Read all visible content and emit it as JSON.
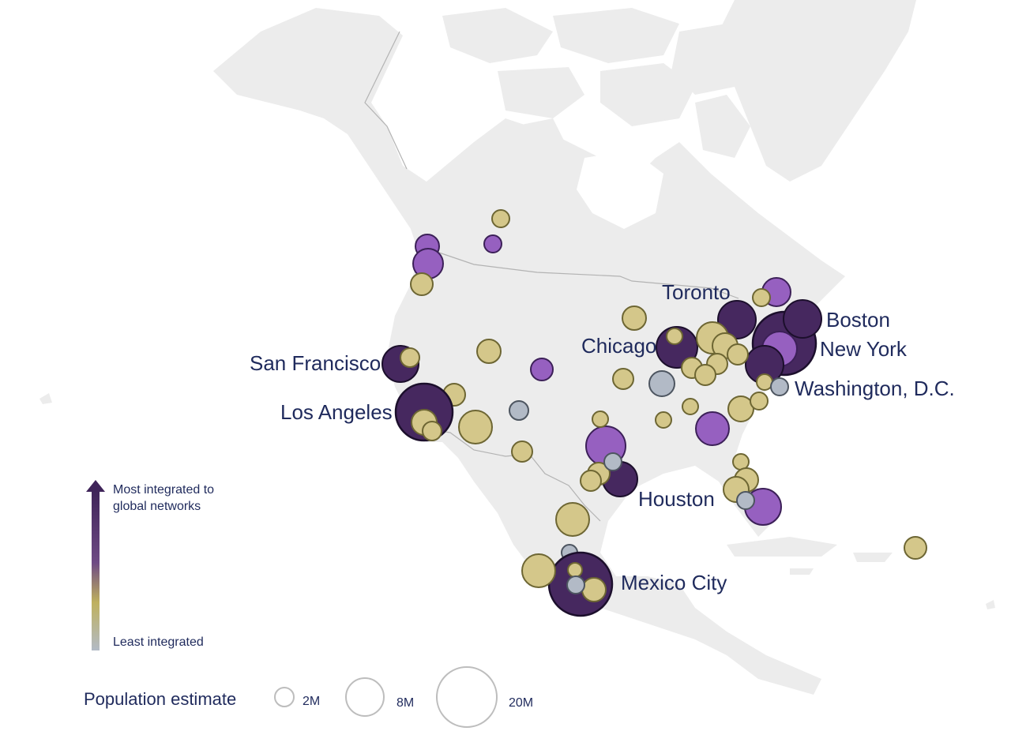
{
  "colors": {
    "most": "#46285f",
    "high": "#9660c0",
    "mid": "#d4c78a",
    "least": "#b2bac6",
    "label": "#1f2a5c"
  },
  "labels": [
    {
      "name": "Toronto"
    },
    {
      "name": "Boston"
    },
    {
      "name": "New York"
    },
    {
      "name": "Chicago"
    },
    {
      "name": "San Francisco"
    },
    {
      "name": "Washington, D.C."
    },
    {
      "name": "Los Angeles"
    },
    {
      "name": "Houston"
    },
    {
      "name": "Mexico City"
    }
  ],
  "color_legend": {
    "top": "Most integrated to",
    "top2": "global networks",
    "bottom": "Least integrated"
  },
  "size_legend": {
    "title": "Population estimate",
    "items": [
      {
        "label": "2M",
        "value": 2
      },
      {
        "label": "8M",
        "value": 8
      },
      {
        "label": "20M",
        "value": 20
      }
    ]
  }
}
